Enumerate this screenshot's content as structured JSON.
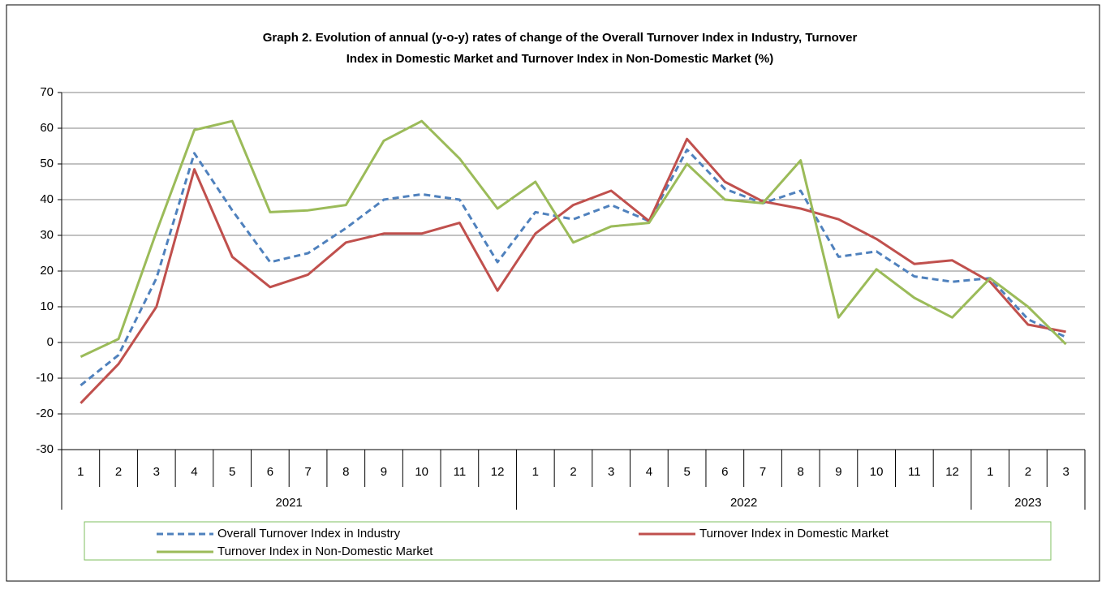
{
  "chart_data": {
    "type": "line",
    "title": "Graph 2. Evolution of annual (y-o-y) rates of change of the  Overall Turnover Index in Industry, Turnover",
    "subtitle": "Index  in Domestic Market and Turnover Index in Non-Domestic Market  (%)",
    "groups": [
      {
        "name": "2021",
        "categories": [
          "1",
          "2",
          "3",
          "4",
          "5",
          "6",
          "7",
          "8",
          "9",
          "10",
          "11",
          "12"
        ]
      },
      {
        "name": "2022",
        "categories": [
          "1",
          "2",
          "3",
          "4",
          "5",
          "6",
          "7",
          "8",
          "9",
          "10",
          "11",
          "12"
        ]
      },
      {
        "name": "2023",
        "categories": [
          "1",
          "2",
          "3"
        ]
      }
    ],
    "series": [
      {
        "name": "Overall Turnover Index in Industry",
        "color": "#4f81bd",
        "style": "dashed",
        "values": [
          -12,
          -3.5,
          18,
          53,
          37,
          22.5,
          25,
          32,
          40,
          41.5,
          40,
          22.5,
          36.5,
          34.5,
          38.5,
          34,
          54,
          43,
          39,
          42.5,
          24,
          25.5,
          18.5,
          17,
          18,
          6.5,
          1.5
        ]
      },
      {
        "name": "Turnover Index in Domestic Market",
        "color": "#c0504d",
        "style": "solid",
        "values": [
          -17,
          -6,
          10,
          48.5,
          24,
          15.5,
          19,
          28,
          30.5,
          30.5,
          33.5,
          14.5,
          30.5,
          38.5,
          42.5,
          34,
          57,
          45,
          39.5,
          37.5,
          34.5,
          29,
          22,
          23,
          17,
          5,
          3
        ]
      },
      {
        "name": "Turnover Index in Non-Domestic Market",
        "color": "#9bbb59",
        "style": "solid",
        "values": [
          -4,
          1,
          31,
          59.5,
          62,
          36.5,
          37,
          38.5,
          56.5,
          62,
          51.5,
          37.5,
          45,
          28,
          32.5,
          33.5,
          50,
          40,
          39,
          51,
          7,
          20.5,
          12.5,
          7,
          18,
          10,
          -0.5
        ]
      }
    ],
    "ylim": [
      -30,
      70
    ],
    "yticks": [
      -30,
      -20,
      -10,
      0,
      10,
      20,
      30,
      40,
      50,
      60,
      70
    ],
    "grid": true
  }
}
